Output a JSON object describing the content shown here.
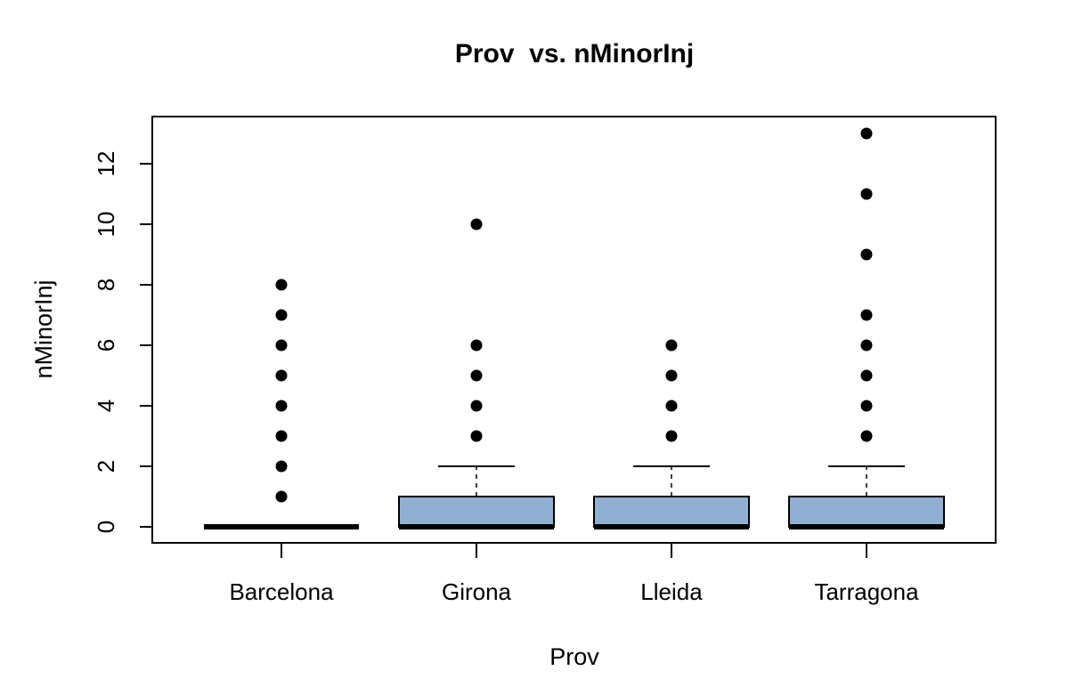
{
  "chart_data": {
    "type": "boxplot",
    "title": "Prov  vs. nMinorInj",
    "xlabel": "Prov",
    "ylabel": "nMinorInj",
    "categories": [
      "Barcelona",
      "Girona",
      "Lleida",
      "Tarragona"
    ],
    "ylim": [
      -0.5,
      13.5
    ],
    "y_ticks": [
      "0",
      "2",
      "4",
      "6",
      "8",
      "10",
      "12"
    ],
    "box_color": "#8fb0d2",
    "boxes": [
      {
        "category": "Barcelona",
        "min": 0,
        "q1": 0,
        "median": 0,
        "q3": 0,
        "max": 0,
        "outliers": [
          1,
          2,
          3,
          4,
          5,
          6,
          7,
          8
        ]
      },
      {
        "category": "Girona",
        "min": 0,
        "q1": 0,
        "median": 0,
        "q3": 1,
        "max": 2,
        "outliers": [
          3,
          4,
          5,
          6,
          10
        ]
      },
      {
        "category": "Lleida",
        "min": 0,
        "q1": 0,
        "median": 0,
        "q3": 1,
        "max": 2,
        "outliers": [
          3,
          4,
          5,
          6
        ]
      },
      {
        "category": "Tarragona",
        "min": 0,
        "q1": 0,
        "median": 0,
        "q3": 1,
        "max": 2,
        "outliers": [
          3,
          4,
          5,
          6,
          7,
          9,
          11,
          13
        ]
      }
    ]
  }
}
